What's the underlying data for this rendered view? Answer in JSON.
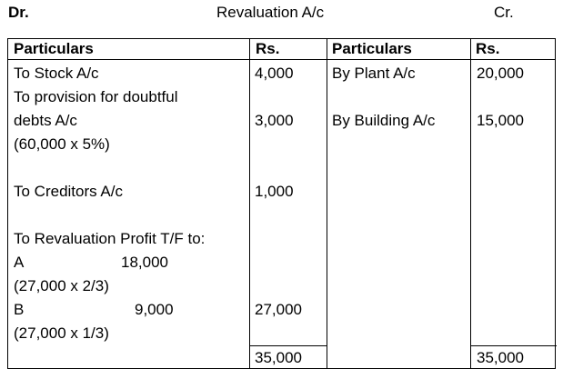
{
  "header": {
    "dr": "Dr.",
    "title": "Revaluation  A/c",
    "cr": "Cr."
  },
  "columns": {
    "particulars_left": "Particulars",
    "rs_left": "Rs.",
    "particulars_right": "Particulars",
    "rs_right": "Rs."
  },
  "debit": {
    "stock": {
      "label": "To Stock A/c",
      "amount": "4,000"
    },
    "provision": {
      "line1": "To provision for doubtful",
      "line2": "debts A/c",
      "line3": "(60,000 x 5%)",
      "amount": "3,000"
    },
    "creditors": {
      "label": "To Creditors  A/c",
      "amount": "1,000"
    },
    "revaluation_profit": {
      "label": "To Revaluation  Profit T/F to:",
      "partner_a": {
        "name": "A",
        "share": "18,000",
        "calc": "(27,000 x 2/3)"
      },
      "partner_b": {
        "name": "B",
        "share": "9,000",
        "calc": "(27,000 x 1/3)"
      },
      "amount": "27,000"
    },
    "total": "35,000"
  },
  "credit": {
    "plant": {
      "label": "By Plant A/c",
      "amount": "20,000"
    },
    "building": {
      "label": "By Building A/c",
      "amount": "15,000"
    },
    "total": "35,000"
  }
}
